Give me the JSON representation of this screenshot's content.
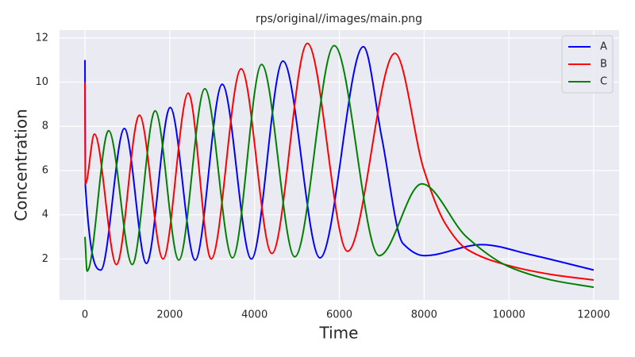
{
  "chart_data": {
    "type": "line",
    "title": "rps/original//images/main.png",
    "x_label": "Time",
    "y_label": "Concentration",
    "xlim": [
      -600,
      12600
    ],
    "ylim": [
      0.15,
      12.35
    ],
    "xticks": [
      0,
      2000,
      4000,
      6000,
      8000,
      10000,
      12000
    ],
    "yticks": [
      2,
      4,
      6,
      8,
      10,
      12
    ],
    "grid": true,
    "legend": "upper right",
    "series": [
      {
        "name": "A",
        "color": "#0000ff",
        "x": [
          0,
          10,
          372,
          930,
          1450,
          2010,
          2600,
          3237,
          3925,
          4670,
          5544,
          6567,
          7000,
          7500,
          8000,
          9360,
          10500,
          12000
        ],
        "values": [
          11,
          5.3,
          1.5,
          7.9,
          1.8,
          8.85,
          1.95,
          9.9,
          2.0,
          10.95,
          2.05,
          11.6,
          7.5,
          2.7,
          2.15,
          2.65,
          2.2,
          1.5
        ]
      },
      {
        "name": "B",
        "color": "#ff0000",
        "x": [
          0,
          10,
          223,
          744,
          1284,
          1842,
          2437,
          2977,
          3684,
          4409,
          5246,
          6195,
          7312,
          8000,
          8500,
          9000,
          10000,
          11000,
          12000
        ],
        "values": [
          10,
          5.4,
          7.65,
          1.75,
          8.5,
          2.0,
          9.5,
          2.0,
          10.6,
          2.25,
          11.75,
          2.35,
          11.3,
          6.0,
          3.6,
          2.45,
          1.7,
          1.3,
          1.05
        ]
      },
      {
        "name": "C",
        "color": "#008000",
        "x": [
          0,
          50,
          558,
          1116,
          1656,
          2214,
          2828,
          3479,
          4167,
          4949,
          5879,
          6940,
          7944,
          9000,
          10000,
          11000,
          12000
        ],
        "values": [
          3,
          1.45,
          7.8,
          1.75,
          8.7,
          1.95,
          9.7,
          2.05,
          10.8,
          2.1,
          11.65,
          2.15,
          5.4,
          3.0,
          1.65,
          1.05,
          0.72
        ]
      }
    ]
  }
}
